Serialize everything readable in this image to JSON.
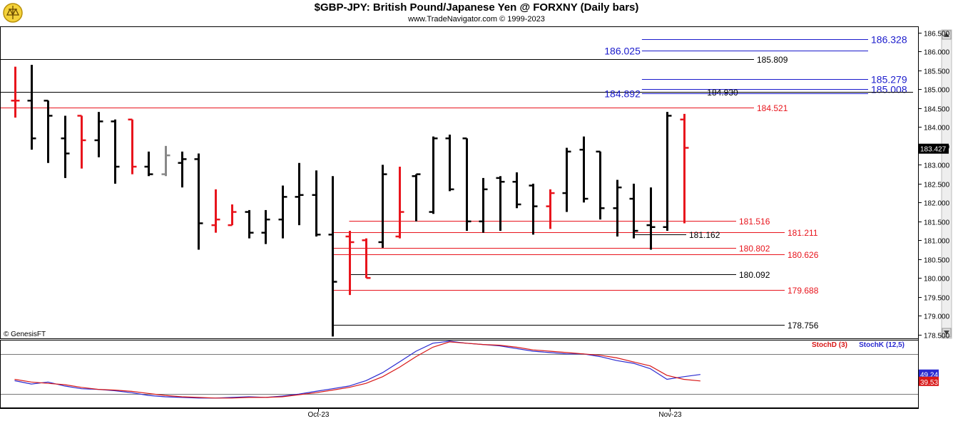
{
  "header": {
    "title": "$GBP-JPY:  British Pound/Japanese Yen @ FORXNY  (Daily bars)",
    "subtitle": "www.TradeNavigator.com © 1999-2023"
  },
  "watermark": "© GenesisFT",
  "colors": {
    "up_bar": "#000000",
    "down_bar": "#e8141c",
    "neutral_bar": "#888888",
    "blue_level": "#1a1acc",
    "red_level": "#e8141c",
    "black_level": "#000000",
    "stoch_k": "#2a2ad0",
    "stoch_d": "#d81818",
    "price_tag_bg": "#000000",
    "stoch_k_tag_bg": "#2a2ad0",
    "stoch_d_tag_bg": "#d81818"
  },
  "chart_data": [
    {
      "type": "ohlc",
      "title": "$GBP-JPY:  British Pound/Japanese Yen @ FORXNY  (Daily bars)",
      "ylim": [
        178.4,
        186.65
      ],
      "y_ticks": [
        "178.500",
        "179.000",
        "179.500",
        "180.000",
        "180.500",
        "181.000",
        "181.500",
        "182.000",
        "182.500",
        "183.000",
        "183.500",
        "184.000",
        "184.500",
        "185.000",
        "185.500",
        "186.000",
        "186.500"
      ],
      "x_ticks": [
        {
          "label": "Oct-23",
          "bar_index": 19
        },
        {
          "label": "Nov-23",
          "bar_index": 40
        }
      ],
      "last_price": "183.427",
      "bars": [
        {
          "o": 184.7,
          "h": 185.6,
          "l": 184.25,
          "c": 184.7,
          "color": "red"
        },
        {
          "o": 184.7,
          "h": 185.65,
          "l": 183.4,
          "c": 183.7,
          "color": "black"
        },
        {
          "o": 184.7,
          "h": 184.7,
          "l": 183.05,
          "c": 184.3,
          "color": "black"
        },
        {
          "o": 183.7,
          "h": 184.3,
          "l": 182.65,
          "c": 183.3,
          "color": "black"
        },
        {
          "o": 184.3,
          "h": 184.3,
          "l": 182.9,
          "c": 183.65,
          "color": "red"
        },
        {
          "o": 183.65,
          "h": 184.4,
          "l": 183.2,
          "c": 184.15,
          "color": "black"
        },
        {
          "o": 184.15,
          "h": 184.2,
          "l": 182.5,
          "c": 182.95,
          "color": "black"
        },
        {
          "o": 184.2,
          "h": 184.2,
          "l": 182.75,
          "c": 182.95,
          "color": "red"
        },
        {
          "o": 182.95,
          "h": 183.35,
          "l": 182.7,
          "c": 182.75,
          "color": "black"
        },
        {
          "o": 182.75,
          "h": 183.5,
          "l": 182.7,
          "c": 183.25,
          "color": "grey"
        },
        {
          "o": 183.05,
          "h": 183.35,
          "l": 182.4,
          "c": 183.15,
          "color": "black"
        },
        {
          "o": 183.15,
          "h": 183.3,
          "l": 180.75,
          "c": 181.45,
          "color": "black"
        },
        {
          "o": 181.4,
          "h": 182.35,
          "l": 181.2,
          "c": 181.55,
          "color": "red"
        },
        {
          "o": 181.4,
          "h": 181.95,
          "l": 181.4,
          "c": 181.75,
          "color": "red"
        },
        {
          "o": 181.75,
          "h": 181.8,
          "l": 181.05,
          "c": 181.2,
          "color": "black"
        },
        {
          "o": 181.2,
          "h": 181.8,
          "l": 180.9,
          "c": 181.55,
          "color": "black"
        },
        {
          "o": 181.55,
          "h": 182.45,
          "l": 181.05,
          "c": 182.15,
          "color": "black"
        },
        {
          "o": 182.15,
          "h": 183.05,
          "l": 181.4,
          "c": 182.2,
          "color": "black"
        },
        {
          "o": 182.2,
          "h": 182.85,
          "l": 181.1,
          "c": 181.15,
          "color": "black"
        },
        {
          "o": 181.15,
          "h": 182.7,
          "l": 178.45,
          "c": 179.9,
          "color": "black"
        },
        {
          "o": 181.1,
          "h": 181.25,
          "l": 179.55,
          "c": 180.95,
          "color": "red"
        },
        {
          "o": 181.0,
          "h": 181.05,
          "l": 180.0,
          "c": 180.0,
          "color": "red"
        },
        {
          "o": 180.95,
          "h": 183.0,
          "l": 180.8,
          "c": 182.75,
          "color": "black"
        },
        {
          "o": 181.1,
          "h": 182.95,
          "l": 181.05,
          "c": 181.75,
          "color": "red"
        },
        {
          "o": 182.7,
          "h": 182.75,
          "l": 181.5,
          "c": 182.75,
          "color": "black"
        },
        {
          "o": 181.75,
          "h": 183.75,
          "l": 181.7,
          "c": 183.7,
          "color": "black"
        },
        {
          "o": 183.7,
          "h": 183.8,
          "l": 182.3,
          "c": 182.35,
          "color": "black"
        },
        {
          "o": 183.7,
          "h": 183.7,
          "l": 181.25,
          "c": 181.5,
          "color": "black"
        },
        {
          "o": 181.5,
          "h": 182.65,
          "l": 181.2,
          "c": 182.35,
          "color": "black"
        },
        {
          "o": 182.65,
          "h": 182.7,
          "l": 181.25,
          "c": 182.55,
          "color": "black"
        },
        {
          "o": 182.55,
          "h": 182.8,
          "l": 181.85,
          "c": 181.95,
          "color": "black"
        },
        {
          "o": 182.45,
          "h": 182.5,
          "l": 181.15,
          "c": 181.9,
          "color": "black"
        },
        {
          "o": 181.9,
          "h": 182.35,
          "l": 181.3,
          "c": 182.25,
          "color": "red"
        },
        {
          "o": 182.25,
          "h": 183.45,
          "l": 181.75,
          "c": 183.35,
          "color": "black"
        },
        {
          "o": 183.4,
          "h": 183.75,
          "l": 182.0,
          "c": 182.1,
          "color": "black"
        },
        {
          "o": 183.35,
          "h": 183.35,
          "l": 181.55,
          "c": 181.85,
          "color": "black"
        },
        {
          "o": 181.85,
          "h": 182.6,
          "l": 181.1,
          "c": 182.4,
          "color": "black"
        },
        {
          "o": 182.1,
          "h": 182.5,
          "l": 181.05,
          "c": 181.25,
          "color": "black"
        },
        {
          "o": 181.4,
          "h": 182.4,
          "l": 180.75,
          "c": 181.35,
          "color": "black"
        },
        {
          "o": 181.35,
          "h": 184.4,
          "l": 181.25,
          "c": 184.3,
          "color": "black"
        },
        {
          "o": 184.2,
          "h": 184.35,
          "l": 181.45,
          "c": 183.45,
          "color": "red"
        }
      ],
      "levels": [
        {
          "value": 186.328,
          "label": "186.328",
          "color": "blue",
          "from_bar": 37.5,
          "label_side": "end"
        },
        {
          "value": 186.025,
          "label": "186.025",
          "color": "blue",
          "from_bar": 37.5,
          "label_side": "start"
        },
        {
          "value": 185.809,
          "label": "185.809",
          "color": "black",
          "from_bar": 0,
          "label_side": "end"
        },
        {
          "value": 185.279,
          "label": "185.279",
          "color": "blue",
          "from_bar": 37.5,
          "label_side": "end"
        },
        {
          "value": 185.008,
          "label": "185.008",
          "color": "blue",
          "from_bar": 37.5,
          "label_side": "end"
        },
        {
          "value": 184.93,
          "label": "184.930",
          "color": "black",
          "from_bar": 0,
          "label_side": "mid"
        },
        {
          "value": 184.892,
          "label": "184.892",
          "color": "blue",
          "from_bar": 37.5,
          "label_side": "start"
        },
        {
          "value": 184.521,
          "label": "184.521",
          "color": "red",
          "from_bar": 0,
          "label_side": "end"
        },
        {
          "value": 181.516,
          "label": "181.516",
          "color": "red",
          "from_bar": 20,
          "label_side": "end"
        },
        {
          "value": 181.211,
          "label": "181.211",
          "color": "red",
          "from_bar": 19,
          "label_side": "end"
        },
        {
          "value": 181.162,
          "label": "181.162",
          "color": "black",
          "from_bar": 37,
          "label_side": "end"
        },
        {
          "value": 180.802,
          "label": "180.802",
          "color": "red",
          "from_bar": 19,
          "label_side": "end"
        },
        {
          "value": 180.626,
          "label": "180.626",
          "color": "red",
          "from_bar": 19,
          "label_side": "end"
        },
        {
          "value": 180.092,
          "label": "180.092",
          "color": "black",
          "from_bar": 20,
          "label_side": "end"
        },
        {
          "value": 179.688,
          "label": "179.688",
          "color": "red",
          "from_bar": 19,
          "label_side": "end"
        },
        {
          "value": 178.756,
          "label": "178.756",
          "color": "black",
          "from_bar": 19,
          "label_side": "end"
        }
      ]
    },
    {
      "type": "line",
      "ylim": [
        0,
        100
      ],
      "legend": [
        "StochD (3)",
        "StochK (12,5)"
      ],
      "reference_lines": [
        20,
        80
      ],
      "last_values": {
        "k": "49.24",
        "d": "39.53"
      },
      "series": [
        {
          "name": "StochK (12,5)",
          "color": "blue",
          "values": [
            40,
            35,
            38,
            32,
            28,
            27,
            25,
            22,
            18,
            16,
            15,
            14,
            14,
            15,
            16,
            15,
            17,
            20,
            24,
            28,
            32,
            40,
            52,
            68,
            84,
            96,
            99,
            96,
            94,
            92,
            88,
            84,
            82,
            80,
            80,
            76,
            70,
            66,
            58,
            42,
            46,
            49.24
          ]
        },
        {
          "name": "StochD (3)",
          "color": "red",
          "values": [
            42,
            38,
            36,
            34,
            30,
            27,
            26,
            24,
            21,
            18,
            16,
            15,
            14,
            14,
            15,
            15,
            16,
            19,
            22,
            26,
            30,
            36,
            46,
            60,
            76,
            90,
            98,
            96,
            94,
            93,
            90,
            86,
            84,
            82,
            80,
            78,
            74,
            68,
            62,
            48,
            42,
            39.53
          ]
        }
      ]
    }
  ]
}
